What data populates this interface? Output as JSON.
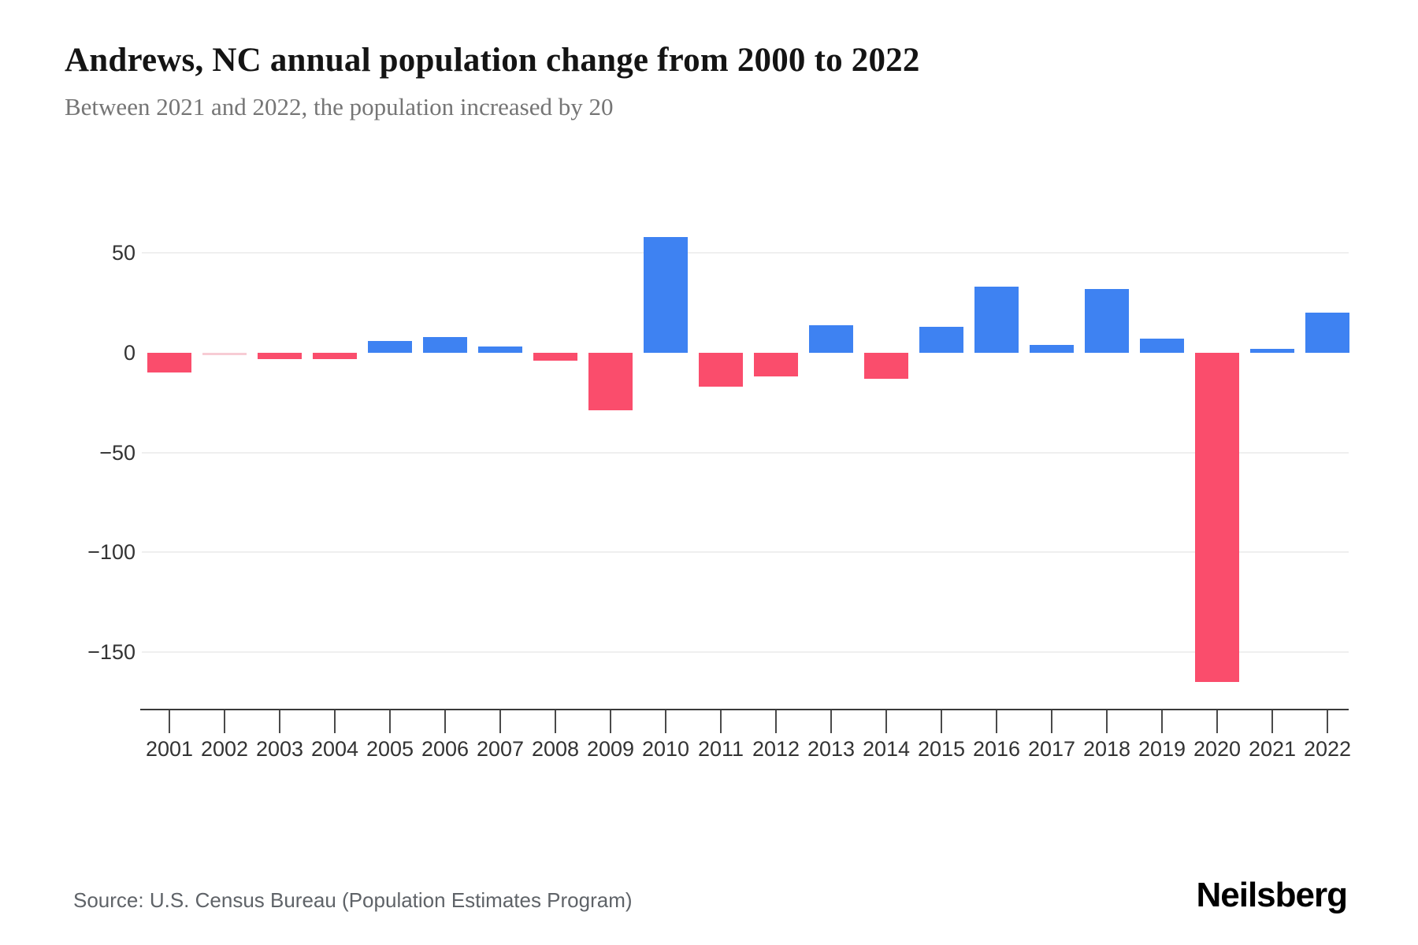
{
  "header": {
    "title": "Andrews, NC annual population change from 2000 to 2022",
    "subtitle": "Between 2021 and 2022, the population increased by 20"
  },
  "footer": {
    "source": "Source: U.S. Census Bureau (Population Estimates Program)",
    "brand": "Neilsberg"
  },
  "chart_data": {
    "type": "bar",
    "title": "Andrews, NC annual population change from 2000 to 2022",
    "subtitle": "Between 2021 and 2022, the population increased by 20",
    "xlabel": "",
    "ylabel": "",
    "categories": [
      "2001",
      "2002",
      "2003",
      "2004",
      "2005",
      "2006",
      "2007",
      "2008",
      "2009",
      "2010",
      "2011",
      "2012",
      "2013",
      "2014",
      "2015",
      "2016",
      "2017",
      "2018",
      "2019",
      "2020",
      "2021",
      "2022"
    ],
    "values": [
      -10,
      0,
      -3,
      -3,
      6,
      8,
      3,
      -4,
      -29,
      58,
      -17,
      -12,
      14,
      -13,
      13,
      33,
      4,
      32,
      7,
      -165,
      2,
      20
    ],
    "ylim": [
      -175,
      65
    ],
    "yticks": [
      {
        "value": 50,
        "label": "50"
      },
      {
        "value": 0,
        "label": "0"
      },
      {
        "value": -50,
        "label": "−50"
      },
      {
        "value": -100,
        "label": "−100"
      },
      {
        "value": -150,
        "label": "−150"
      }
    ],
    "gridline_values": [
      50,
      -50,
      -100,
      -150
    ],
    "legend": "none",
    "grid": "horizontal only",
    "colors": {
      "positive": "#3e82f2",
      "negative": "#fa4d6c",
      "zero": "#f7ccd4",
      "gridline": "#efefef",
      "axis": "#3a3a3a",
      "tick_text": "#333333"
    }
  }
}
